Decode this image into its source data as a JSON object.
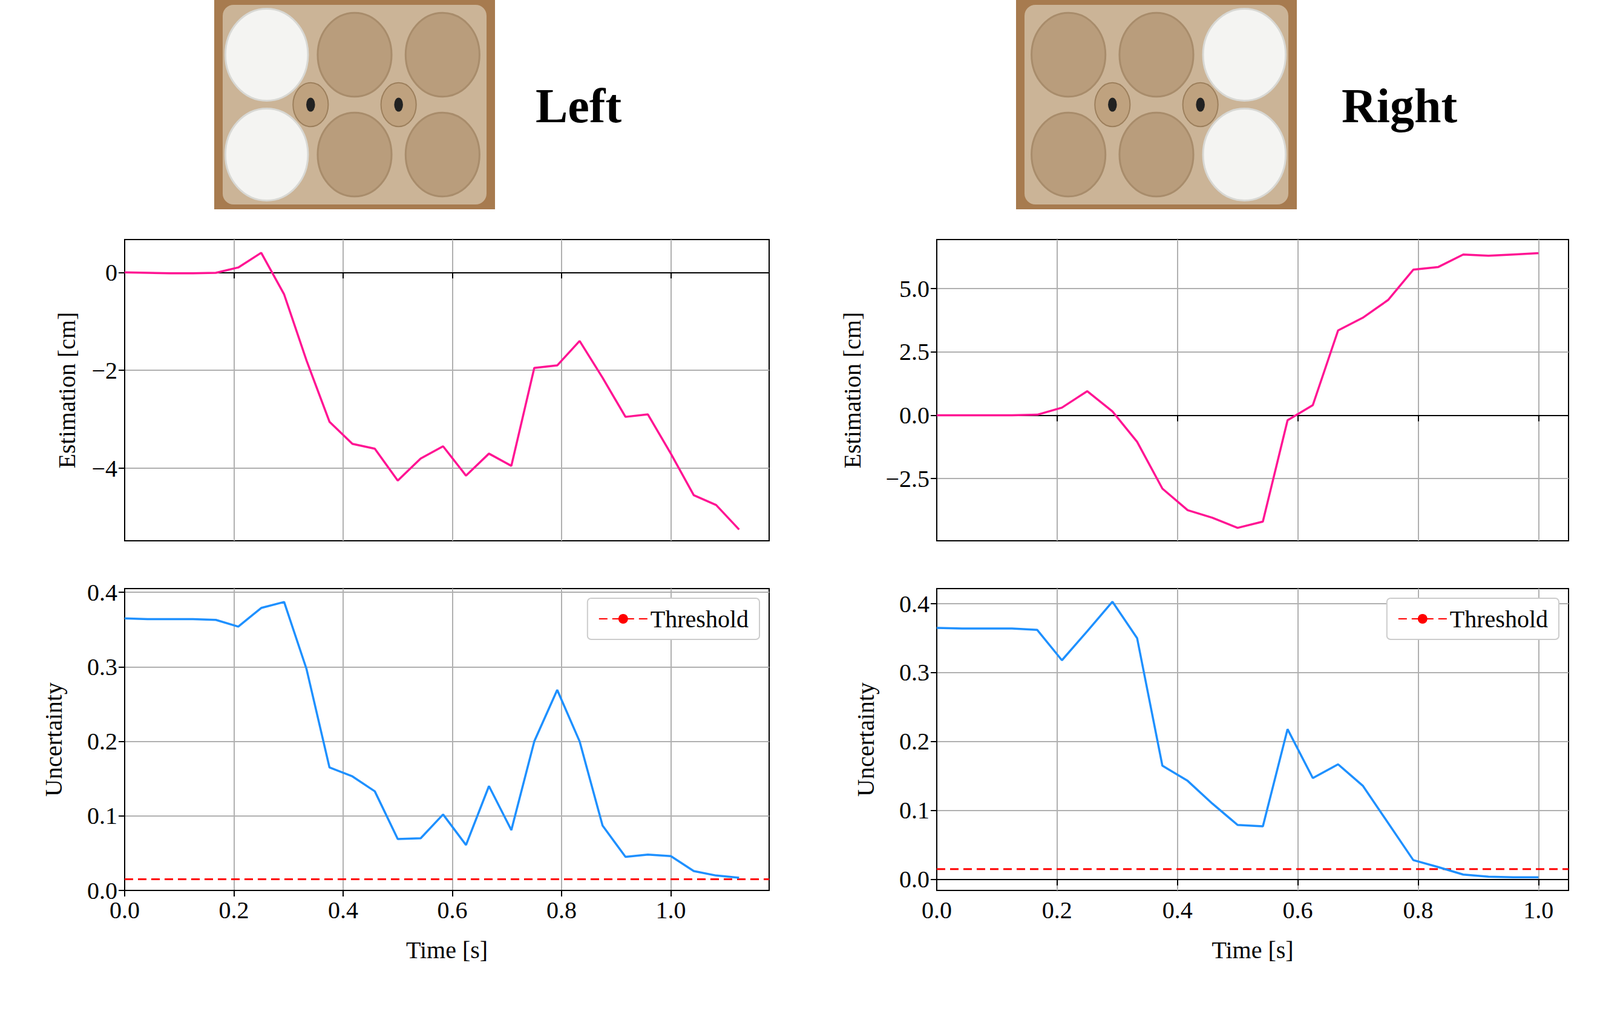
{
  "header": {
    "titles": [
      "Left",
      "Right"
    ]
  },
  "chart_data": [
    {
      "type": "line",
      "y_label": "Estimation [cm]",
      "grid": true,
      "tick_labels": "y",
      "x": [
        0,
        0.042,
        0.083,
        0.125,
        0.167,
        0.208,
        0.25,
        0.292,
        0.333,
        0.375,
        0.417,
        0.458,
        0.5,
        0.542,
        0.583,
        0.625,
        0.667,
        0.708,
        0.75,
        0.792,
        0.833,
        0.875,
        0.917,
        0.958,
        1.0,
        1.042,
        1.083,
        1.125
      ],
      "values": [
        0,
        -0.01,
        -0.02,
        -0.02,
        -0.01,
        0.1,
        0.4,
        -0.45,
        -1.8,
        -3.05,
        -3.5,
        -3.6,
        -4.25,
        -3.8,
        -3.55,
        -4.15,
        -3.7,
        -3.95,
        -1.95,
        -1.9,
        -1.4,
        -2.15,
        -2.95,
        -2.9,
        -3.7,
        -4.55,
        -4.75,
        -5.25
      ],
      "color": "#ff1493",
      "xlim": [
        0,
        1.18
      ],
      "xticks": [
        0,
        0.2,
        0.4,
        0.6,
        0.8,
        1.0
      ],
      "ylim": [
        -5.48,
        0.67
      ],
      "yticks": [
        {
          "value": -4,
          "label": "−4"
        },
        {
          "value": -2,
          "label": "−2"
        },
        0
      ]
    },
    {
      "type": "line",
      "x_label": "Time [s]",
      "y_label": "Uncertainty",
      "grid": true,
      "legend": "upper right",
      "x": [
        0,
        0.042,
        0.083,
        0.125,
        0.167,
        0.208,
        0.25,
        0.292,
        0.333,
        0.375,
        0.417,
        0.458,
        0.5,
        0.542,
        0.583,
        0.625,
        0.667,
        0.708,
        0.75,
        0.792,
        0.833,
        0.875,
        0.917,
        0.958,
        1.0,
        1.042,
        1.083,
        1.125
      ],
      "values": [
        0.365,
        0.364,
        0.364,
        0.364,
        0.363,
        0.354,
        0.379,
        0.387,
        0.297,
        0.165,
        0.153,
        0.133,
        0.069,
        0.07,
        0.102,
        0.061,
        0.14,
        0.081,
        0.2,
        0.269,
        0.2,
        0.087,
        0.045,
        0.048,
        0.046,
        0.026,
        0.02,
        0.017
      ],
      "color": "#1e90ff",
      "threshold": {
        "name": "Threshold",
        "value": 0.015,
        "color": "#ff0000",
        "line_style": "dashed"
      },
      "xlim": [
        0,
        1.18
      ],
      "xticks": [
        {
          "value": 0,
          "label": "0.0"
        },
        {
          "value": 0.2,
          "label": "0.2"
        },
        {
          "value": 0.4,
          "label": "0.4"
        },
        {
          "value": 0.6,
          "label": "0.6"
        },
        {
          "value": 0.8,
          "label": "0.8"
        },
        {
          "value": 1.0,
          "label": "1.0"
        }
      ],
      "ylim": [
        0,
        0.405
      ],
      "yticks": [
        {
          "value": 0,
          "label": "0.0"
        },
        0.1,
        0.2,
        0.3,
        0.4
      ]
    },
    {
      "type": "line",
      "y_label": "Estimation [cm]",
      "grid": true,
      "tick_labels": "y",
      "x": [
        0,
        0.042,
        0.083,
        0.125,
        0.167,
        0.208,
        0.25,
        0.292,
        0.333,
        0.375,
        0.417,
        0.458,
        0.5,
        0.542,
        0.583,
        0.625,
        0.667,
        0.708,
        0.75,
        0.792,
        0.833,
        0.875,
        0.917,
        0.958,
        1.0
      ],
      "values": [
        0,
        0,
        0,
        0,
        0.02,
        0.3,
        0.95,
        0.15,
        -1.05,
        -2.9,
        -3.75,
        -4.05,
        -4.45,
        -4.2,
        -0.2,
        0.4,
        3.35,
        3.85,
        4.55,
        5.75,
        5.85,
        6.35,
        6.3,
        6.35,
        6.4
      ],
      "color": "#ff1493",
      "xlim": [
        0,
        1.05
      ],
      "xticks": [
        0,
        0.2,
        0.4,
        0.6,
        0.8,
        1.0
      ],
      "ylim": [
        -4.96,
        6.94
      ],
      "yticks": [
        {
          "value": -2.5,
          "label": "−2.5"
        },
        {
          "value": 0,
          "label": "0.0"
        },
        2.5,
        {
          "value": 5,
          "label": "5.0"
        }
      ]
    },
    {
      "type": "line",
      "x_label": "Time [s]",
      "y_label": "Uncertainty",
      "grid": true,
      "legend": "upper right",
      "x": [
        0,
        0.042,
        0.083,
        0.125,
        0.167,
        0.208,
        0.25,
        0.292,
        0.333,
        0.375,
        0.417,
        0.458,
        0.5,
        0.542,
        0.583,
        0.625,
        0.667,
        0.708,
        0.75,
        0.792,
        0.833,
        0.875,
        0.917,
        0.958,
        1.0
      ],
      "values": [
        0.365,
        0.364,
        0.364,
        0.364,
        0.362,
        0.318,
        0.36,
        0.403,
        0.35,
        0.165,
        0.143,
        0.11,
        0.079,
        0.077,
        0.218,
        0.147,
        0.167,
        0.136,
        0.082,
        0.028,
        0.018,
        0.007,
        0.004,
        0.003,
        0.003
      ],
      "color": "#1e90ff",
      "threshold": {
        "name": "Threshold",
        "value": 0.015,
        "color": "#ff0000",
        "line_style": "dashed"
      },
      "xlim": [
        0,
        1.05
      ],
      "xticks": [
        {
          "value": 0,
          "label": "0.0"
        },
        {
          "value": 0.2,
          "label": "0.2"
        },
        {
          "value": 0.4,
          "label": "0.4"
        },
        {
          "value": 0.6,
          "label": "0.6"
        },
        {
          "value": 0.8,
          "label": "0.8"
        },
        {
          "value": 1.0,
          "label": "1.0"
        }
      ],
      "ylim": [
        -0.016,
        0.422
      ],
      "yticks": [
        {
          "value": 0,
          "label": "0.0"
        },
        0.1,
        0.2,
        0.3,
        0.4
      ]
    }
  ]
}
